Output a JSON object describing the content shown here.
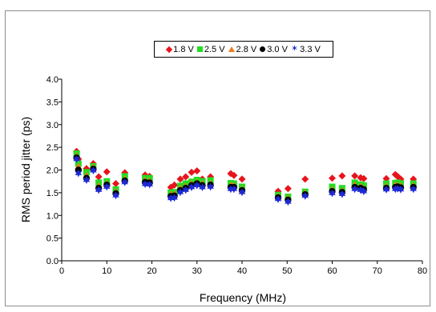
{
  "chart_data": {
    "type": "scatter",
    "xlabel": "Frequency (MHz)",
    "ylabel": "RMS period jitter (ps)",
    "xlim": [
      0,
      80
    ],
    "ylim": [
      0,
      4
    ],
    "xticks": [
      "0",
      "10",
      "20",
      "30",
      "40",
      "50",
      "60",
      "70",
      "80"
    ],
    "yticks": [
      "0.0",
      "0.5",
      "1.0",
      "1.5",
      "2.0",
      "2.5",
      "3.0",
      "3.5",
      "4.0"
    ],
    "grid": false,
    "legend_position": "top-center",
    "x": [
      3.3,
      3.7,
      5.5,
      7,
      8.2,
      10,
      12,
      14,
      18.5,
      19.5,
      24.2,
      25,
      26.3,
      27.5,
      28.8,
      30,
      31.2,
      33,
      37.5,
      38.2,
      40,
      48,
      50.2,
      54,
      60,
      62.2,
      65,
      66.3,
      67,
      72,
      74,
      74.5,
      75.2,
      78
    ],
    "series": [
      {
        "name": "1.8 V",
        "color": "#e8141c",
        "marker": "diamond",
        "values": [
          2.41,
          2.24,
          2.03,
          2.14,
          1.85,
          1.96,
          1.7,
          1.94,
          1.89,
          1.86,
          1.62,
          1.67,
          1.8,
          1.85,
          1.95,
          1.98,
          1.8,
          1.85,
          1.92,
          1.88,
          1.8,
          1.53,
          1.59,
          1.8,
          1.82,
          1.87,
          1.87,
          1.83,
          1.81,
          1.81,
          1.9,
          1.86,
          1.8,
          1.8
        ]
      },
      {
        "name": "2.5 V",
        "color": "#22dd22",
        "marker": "square",
        "values": [
          2.36,
          2.14,
          1.95,
          2.08,
          1.72,
          1.75,
          1.57,
          1.86,
          1.82,
          1.82,
          1.5,
          1.51,
          1.65,
          1.7,
          1.74,
          1.78,
          1.75,
          1.77,
          1.71,
          1.7,
          1.63,
          1.45,
          1.41,
          1.52,
          1.63,
          1.6,
          1.72,
          1.68,
          1.66,
          1.7,
          1.71,
          1.72,
          1.7,
          1.7
        ]
      },
      {
        "name": "2.8 V",
        "color": "#f07a1a",
        "marker": "triangle",
        "values": [
          2.31,
          2.08,
          1.88,
          2.06,
          1.65,
          1.7,
          1.52,
          1.8,
          1.77,
          1.76,
          1.46,
          1.47,
          1.6,
          1.64,
          1.7,
          1.73,
          1.7,
          1.7,
          1.66,
          1.66,
          1.58,
          1.42,
          1.38,
          1.49,
          1.57,
          1.54,
          1.67,
          1.64,
          1.6,
          1.64,
          1.66,
          1.66,
          1.65,
          1.65
        ]
      },
      {
        "name": "3.0 V",
        "color": "#000000",
        "marker": "circle",
        "values": [
          2.27,
          2.0,
          1.82,
          2.02,
          1.6,
          1.67,
          1.48,
          1.76,
          1.73,
          1.72,
          1.42,
          1.43,
          1.55,
          1.6,
          1.66,
          1.7,
          1.66,
          1.67,
          1.62,
          1.62,
          1.55,
          1.39,
          1.34,
          1.46,
          1.53,
          1.51,
          1.62,
          1.6,
          1.57,
          1.6,
          1.62,
          1.63,
          1.61,
          1.62
        ]
      },
      {
        "name": "3.3 V",
        "color": "#1c2ad6",
        "marker": "star",
        "values": [
          2.24,
          1.93,
          1.78,
          1.99,
          1.56,
          1.63,
          1.44,
          1.73,
          1.69,
          1.68,
          1.38,
          1.39,
          1.51,
          1.56,
          1.62,
          1.66,
          1.62,
          1.63,
          1.58,
          1.58,
          1.51,
          1.36,
          1.3,
          1.43,
          1.49,
          1.47,
          1.58,
          1.56,
          1.53,
          1.57,
          1.58,
          1.59,
          1.57,
          1.58
        ]
      }
    ]
  }
}
